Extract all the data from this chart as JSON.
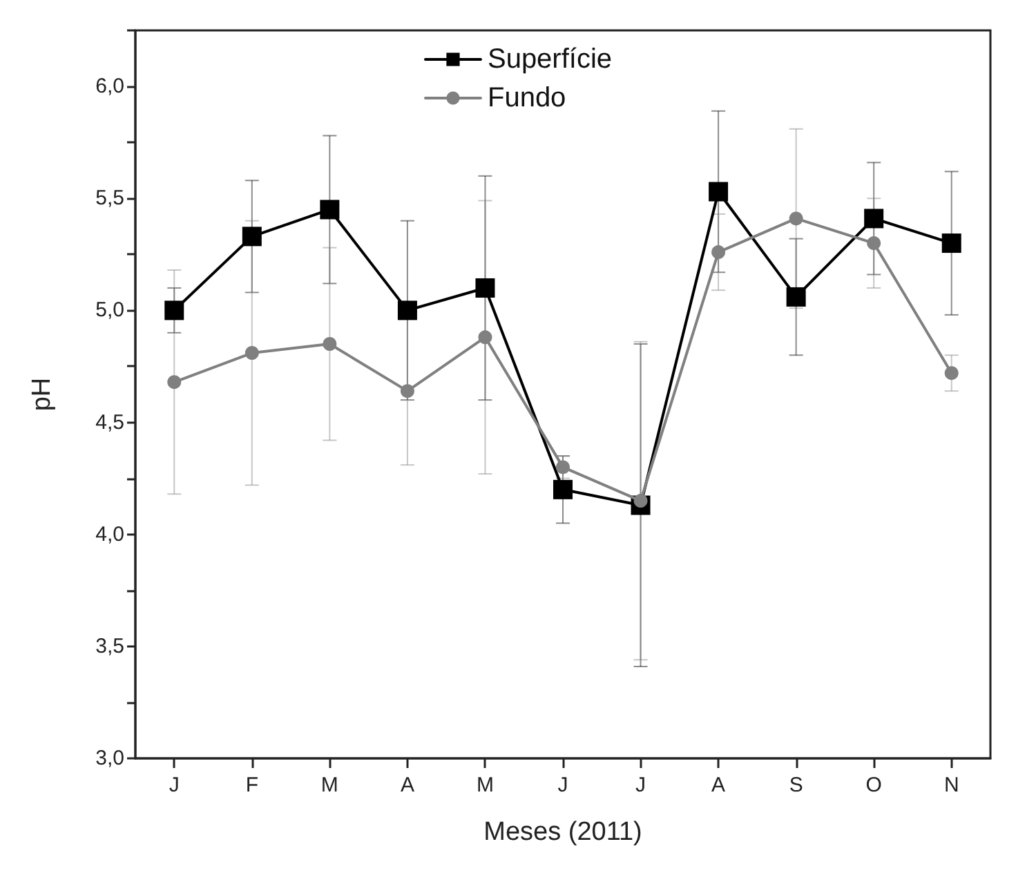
{
  "chart_data": {
    "type": "line",
    "xlabel": "Meses (2011)",
    "ylabel": "pH",
    "categories": [
      "J",
      "F",
      "M",
      "A",
      "M",
      "J",
      "J",
      "A",
      "S",
      "O",
      "N"
    ],
    "series": [
      {
        "name": "Superfície",
        "color": "#000000",
        "marker": "square",
        "values": [
          5.0,
          5.33,
          5.45,
          5.0,
          5.1,
          4.2,
          4.13,
          5.53,
          5.06,
          5.41,
          5.3
        ],
        "errors": [
          0.1,
          0.25,
          0.33,
          0.4,
          0.5,
          0.15,
          0.72,
          0.36,
          0.26,
          0.25,
          0.32
        ]
      },
      {
        "name": "Fundo",
        "color": "#808080",
        "marker": "circle",
        "values": [
          4.68,
          4.81,
          4.85,
          4.64,
          4.88,
          4.3,
          4.15,
          5.26,
          5.41,
          5.3,
          4.72
        ],
        "errors": [
          0.5,
          0.59,
          0.43,
          0.33,
          0.61,
          0.05,
          0.71,
          0.17,
          0.4,
          0.2,
          0.08
        ]
      }
    ],
    "ylim": [
      3.0,
      6.25
    ],
    "yticks": [
      {
        "value": 3.0,
        "label": "3,0"
      },
      {
        "value": 3.25,
        "label": null
      },
      {
        "value": 3.5,
        "label": "3,5"
      },
      {
        "value": 3.75,
        "label": null
      },
      {
        "value": 4.0,
        "label": "4,0"
      },
      {
        "value": 4.25,
        "label": null
      },
      {
        "value": 4.5,
        "label": "4,5"
      },
      {
        "value": 4.75,
        "label": null
      },
      {
        "value": 5.0,
        "label": "5,0"
      },
      {
        "value": 5.25,
        "label": null
      },
      {
        "value": 5.5,
        "label": "5,5"
      },
      {
        "value": 5.75,
        "label": null
      },
      {
        "value": 6.0,
        "label": "6,0"
      },
      {
        "value": 6.25,
        "label": null
      }
    ],
    "grid": false,
    "legend": "top",
    "line_style": "solid"
  }
}
